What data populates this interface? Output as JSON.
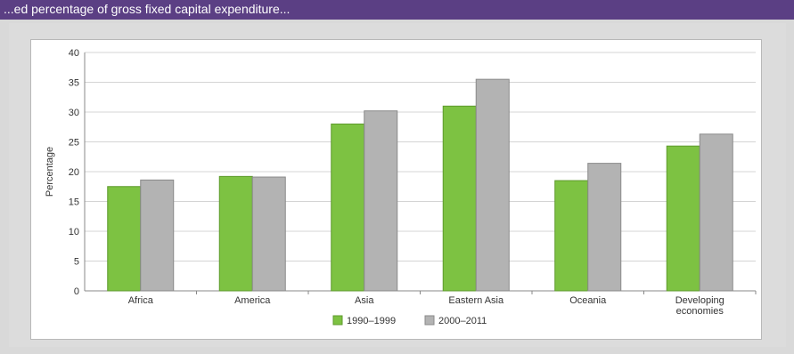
{
  "header": {
    "caption": "...ed percentage of gross fixed capital expenditure..."
  },
  "colors": {
    "series1": "#7dc242",
    "series1_edge": "#5e9a2c",
    "series2": "#b3b3b3",
    "series2_edge": "#8a8a8a",
    "grid": "#d4d4d4",
    "axis": "#888888",
    "header_band": "#5b3f84"
  },
  "chart_data": {
    "type": "bar",
    "ylabel": "Percentage",
    "ylim": [
      0,
      40
    ],
    "yticks": [
      0,
      5,
      10,
      15,
      20,
      25,
      30,
      35,
      40
    ],
    "grid": true,
    "legend_position": "bottom-center",
    "categories": [
      [
        "Africa"
      ],
      [
        "America"
      ],
      [
        "Asia"
      ],
      [
        "Eastern Asia"
      ],
      [
        "Oceania"
      ],
      [
        "Developing",
        "economies"
      ]
    ],
    "series": [
      {
        "name": "1990–1999",
        "values": [
          17.5,
          19.2,
          28.0,
          31.0,
          18.5,
          24.3
        ]
      },
      {
        "name": "2000–2011",
        "values": [
          18.6,
          19.1,
          30.2,
          35.5,
          21.4,
          26.3
        ]
      }
    ]
  }
}
